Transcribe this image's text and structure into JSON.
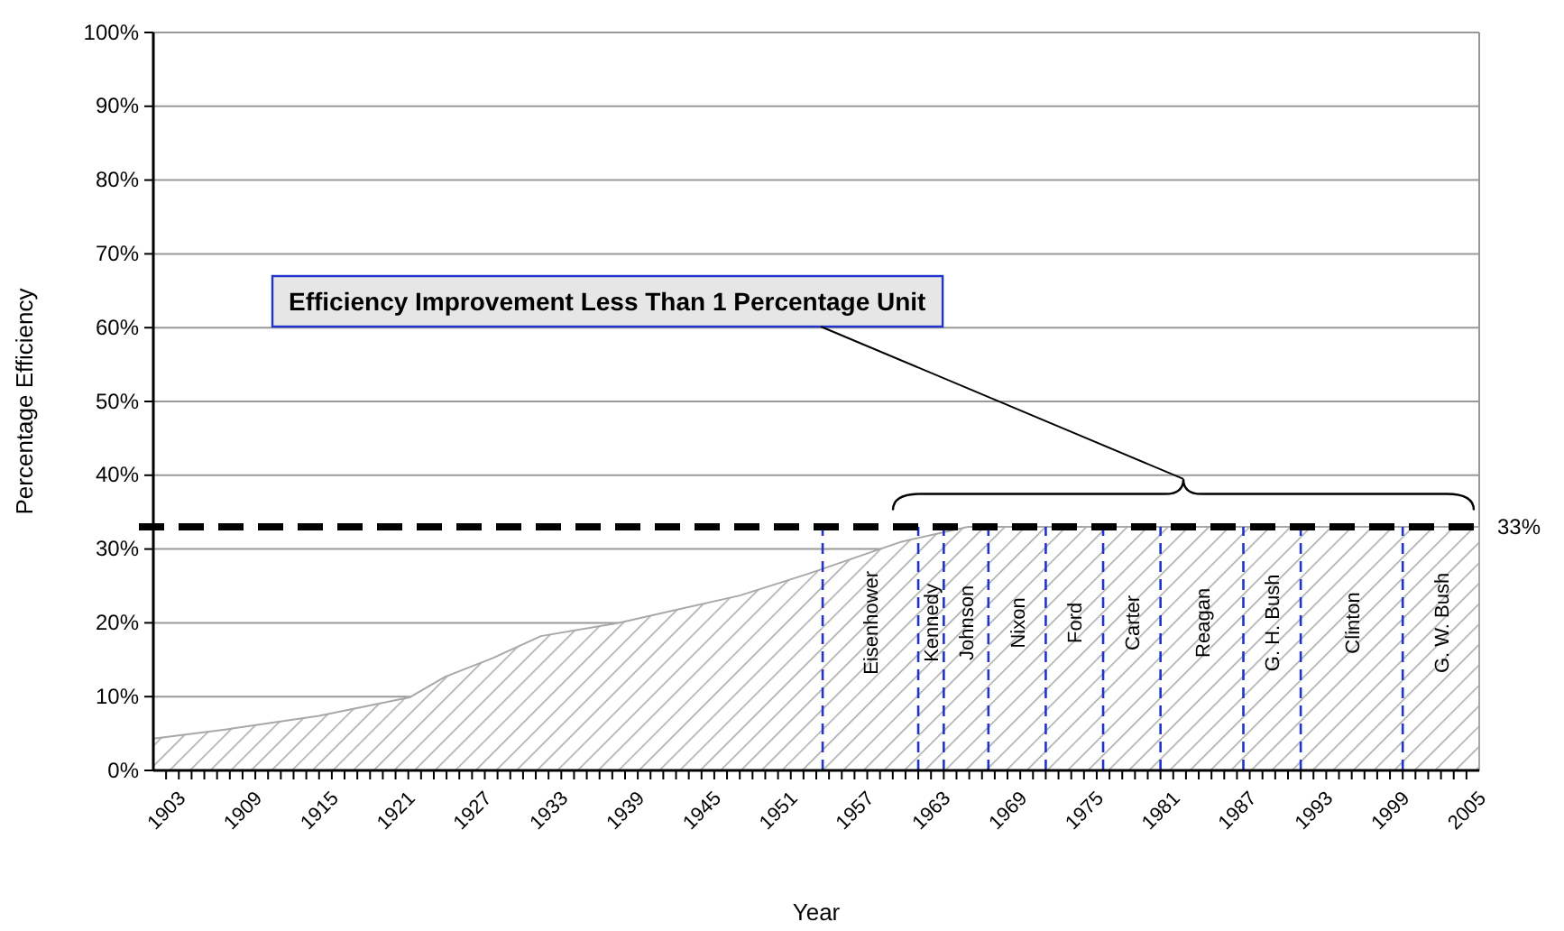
{
  "chart_data": {
    "type": "area",
    "xlabel": "Year",
    "ylabel": "Percentage Efficiency",
    "x": [
      1902,
      1907.9,
      1915,
      1922.1,
      1924.9,
      1928.6,
      1932.4,
      1938.5,
      1948,
      1953.3,
      1960.7,
      1965.9,
      2006
    ],
    "series": [
      {
        "color": "#a8a8a8",
        "values": [
          4.3,
          5.6,
          7.4,
          9.9,
          12.7,
          15.2,
          18.2,
          20,
          23.7,
          26.6,
          31,
          33,
          33
        ]
      }
    ],
    "xlim": [
      1902,
      2006
    ],
    "xticks": [
      1903,
      {
        "value": 1904,
        "label": null
      },
      {
        "value": 1905,
        "label": null
      },
      {
        "value": 1906,
        "label": null
      },
      {
        "value": 1907,
        "label": null
      },
      {
        "value": 1908,
        "label": null
      },
      1909,
      {
        "value": 1910,
        "label": null
      },
      {
        "value": 1911,
        "label": null
      },
      {
        "value": 1912,
        "label": null
      },
      {
        "value": 1913,
        "label": null
      },
      {
        "value": 1914,
        "label": null
      },
      1915,
      {
        "value": 1916,
        "label": null
      },
      {
        "value": 1917,
        "label": null
      },
      {
        "value": 1918,
        "label": null
      },
      {
        "value": 1919,
        "label": null
      },
      {
        "value": 1920,
        "label": null
      },
      1921,
      {
        "value": 1922,
        "label": null
      },
      {
        "value": 1923,
        "label": null
      },
      {
        "value": 1924,
        "label": null
      },
      {
        "value": 1925,
        "label": null
      },
      {
        "value": 1926,
        "label": null
      },
      1927,
      {
        "value": 1928,
        "label": null
      },
      {
        "value": 1929,
        "label": null
      },
      {
        "value": 1930,
        "label": null
      },
      {
        "value": 1931,
        "label": null
      },
      {
        "value": 1932,
        "label": null
      },
      1933,
      {
        "value": 1934,
        "label": null
      },
      {
        "value": 1935,
        "label": null
      },
      {
        "value": 1936,
        "label": null
      },
      {
        "value": 1937,
        "label": null
      },
      {
        "value": 1938,
        "label": null
      },
      1939,
      {
        "value": 1940,
        "label": null
      },
      {
        "value": 1941,
        "label": null
      },
      {
        "value": 1942,
        "label": null
      },
      {
        "value": 1943,
        "label": null
      },
      {
        "value": 1944,
        "label": null
      },
      1945,
      {
        "value": 1946,
        "label": null
      },
      {
        "value": 1947,
        "label": null
      },
      {
        "value": 1948,
        "label": null
      },
      {
        "value": 1949,
        "label": null
      },
      {
        "value": 1950,
        "label": null
      },
      1951,
      {
        "value": 1952,
        "label": null
      },
      {
        "value": 1953,
        "label": null
      },
      {
        "value": 1954,
        "label": null
      },
      {
        "value": 1955,
        "label": null
      },
      {
        "value": 1956,
        "label": null
      },
      1957,
      {
        "value": 1958,
        "label": null
      },
      {
        "value": 1959,
        "label": null
      },
      {
        "value": 1960,
        "label": null
      },
      {
        "value": 1961,
        "label": null
      },
      {
        "value": 1962,
        "label": null
      },
      1963,
      {
        "value": 1964,
        "label": null
      },
      {
        "value": 1965,
        "label": null
      },
      {
        "value": 1966,
        "label": null
      },
      {
        "value": 1967,
        "label": null
      },
      {
        "value": 1968,
        "label": null
      },
      1969,
      {
        "value": 1970,
        "label": null
      },
      {
        "value": 1971,
        "label": null
      },
      {
        "value": 1972,
        "label": null
      },
      {
        "value": 1973,
        "label": null
      },
      {
        "value": 1974,
        "label": null
      },
      1975,
      {
        "value": 1976,
        "label": null
      },
      {
        "value": 1977,
        "label": null
      },
      {
        "value": 1978,
        "label": null
      },
      {
        "value": 1979,
        "label": null
      },
      {
        "value": 1980,
        "label": null
      },
      1981,
      {
        "value": 1982,
        "label": null
      },
      {
        "value": 1983,
        "label": null
      },
      {
        "value": 1984,
        "label": null
      },
      {
        "value": 1985,
        "label": null
      },
      {
        "value": 1986,
        "label": null
      },
      1987,
      {
        "value": 1988,
        "label": null
      },
      {
        "value": 1989,
        "label": null
      },
      {
        "value": 1990,
        "label": null
      },
      {
        "value": 1991,
        "label": null
      },
      {
        "value": 1992,
        "label": null
      },
      1993,
      {
        "value": 1994,
        "label": null
      },
      {
        "value": 1995,
        "label": null
      },
      {
        "value": 1996,
        "label": null
      },
      {
        "value": 1997,
        "label": null
      },
      {
        "value": 1998,
        "label": null
      },
      1999,
      {
        "value": 2000,
        "label": null
      },
      {
        "value": 2001,
        "label": null
      },
      {
        "value": 2002,
        "label": null
      },
      {
        "value": 2003,
        "label": null
      },
      {
        "value": 2004,
        "label": null
      },
      2005
    ],
    "ylim": [
      0,
      100
    ],
    "yticks": [
      {
        "value": 0,
        "label": "0%"
      },
      {
        "value": 10,
        "label": "10%"
      },
      {
        "value": 20,
        "label": "20%"
      },
      {
        "value": 30,
        "label": "30%"
      },
      {
        "value": 40,
        "label": "40%"
      },
      {
        "value": 50,
        "label": "50%"
      },
      {
        "value": 60,
        "label": "60%"
      },
      {
        "value": 70,
        "label": "70%"
      },
      {
        "value": 80,
        "label": "80%"
      },
      {
        "value": 90,
        "label": "90%"
      },
      {
        "value": 100,
        "label": "100%"
      }
    ],
    "grid": "y",
    "ref_lines": [
      {
        "axis": "y",
        "value": 33,
        "label": "33%",
        "color": "#000000",
        "line_style": "dashed"
      },
      {
        "axis": "x",
        "value": 1954.5,
        "label": "Eisenhower",
        "color": "#2233cc",
        "line_style": "dashed"
      },
      {
        "axis": "x",
        "value": 1962,
        "label": "Kennedy",
        "color": "#2233cc",
        "line_style": "dashed"
      },
      {
        "axis": "x",
        "value": 1964,
        "label": "Johnson",
        "color": "#2233cc",
        "line_style": "dashed"
      },
      {
        "axis": "x",
        "value": 1967.5,
        "label": "Nixon",
        "color": "#2233cc",
        "line_style": "dashed"
      },
      {
        "axis": "x",
        "value": 1972,
        "label": "Ford",
        "color": "#2233cc",
        "line_style": "dashed"
      },
      {
        "axis": "x",
        "value": 1976.5,
        "label": "Carter",
        "color": "#2233cc",
        "line_style": "dashed"
      },
      {
        "axis": "x",
        "value": 1981,
        "label": "Reagan",
        "color": "#2233cc",
        "line_style": "dashed"
      },
      {
        "axis": "x",
        "value": 1987.5,
        "label": "G. H. Bush",
        "color": "#2233cc",
        "line_style": "dashed"
      },
      {
        "axis": "x",
        "value": 1992,
        "label": "Clinton",
        "color": "#2233cc",
        "line_style": "dashed"
      },
      {
        "axis": "x",
        "value": 2000,
        "label": "G. W. Bush",
        "color": "#2233cc",
        "line_style": "dashed"
      }
    ],
    "annotations": [
      "Efficiency Improvement Less Than 1 Percentage Unit"
    ]
  }
}
